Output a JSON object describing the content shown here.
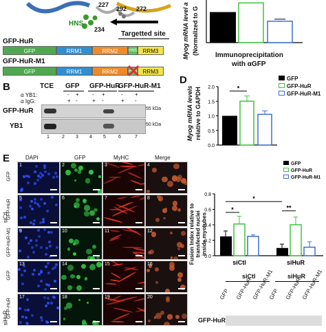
{
  "panelA": {
    "residues": [
      "227",
      "292",
      "272",
      "234"
    ],
    "hns_label": "HNS",
    "targeted_site": "Targetted site",
    "constructs": [
      {
        "name": "GFP-HuR",
        "domains": [
          "GFP",
          "RRM1",
          "RRM2",
          "HNS",
          "RRM3"
        ]
      },
      {
        "name": "GFP-HuR-M1",
        "domains": [
          "GFP",
          "RRM1",
          "RRM2",
          "HNS",
          "RRM3"
        ]
      }
    ]
  },
  "panelC": {
    "ylabel_1": "Myog mRNA level a",
    "ylabel_2": "(Normalized to G",
    "xlabel_1": "Immunoprecipitation",
    "xlabel_2": "with αGFP",
    "chart_data": {
      "type": "bar",
      "series": [
        {
          "name": "GFP",
          "values": [
            1.0
          ]
        },
        {
          "name": "GFP-HuR",
          "values": [
            1.3
          ]
        },
        {
          "name": "GFP-HuR-M1",
          "values": [
            0.7
          ]
        }
      ],
      "ylim": [
        0,
        1.35
      ]
    }
  },
  "panelB": {
    "letter": "B",
    "lanes": [
      "TCE",
      "GFP",
      "GFP-HuR",
      "GFP-HuR-M1"
    ],
    "row_yb1": "α YB1:",
    "row_igg": "α IgG:",
    "yb1_signs": [
      "-",
      "+",
      "-",
      "+",
      "-",
      "+"
    ],
    "igg_signs": [
      "+",
      "-",
      "+",
      "-",
      "+",
      "-"
    ],
    "bands": [
      "GFP-HuR",
      "YB1"
    ],
    "mw": [
      "55 kDa",
      "50 kDa"
    ],
    "lane_numbers": [
      "1",
      "2",
      "3",
      "4",
      "5",
      "6",
      "7"
    ]
  },
  "panelD": {
    "letter": "D",
    "legend": [
      "GFP",
      "GFP-HuR",
      "GFP-HuR-M1"
    ],
    "ylabel_1": "Myog mRNA levels",
    "ylabel_2": "relative to GAPDH",
    "significance": "*",
    "chart_data": {
      "type": "bar",
      "categories": [
        "GFP",
        "GFP-HuR",
        "GFP-HuR-M1"
      ],
      "values": [
        1.0,
        1.5,
        1.05
      ],
      "errors": [
        0,
        0.18,
        0.12
      ],
      "ylim": [
        0,
        2.0
      ],
      "yticks": [
        "0.0",
        "0.5",
        "1.0",
        "1.5",
        "2.0"
      ]
    }
  },
  "panelE": {
    "letter": "E",
    "columns": [
      "DAPI",
      "GFP",
      "MyHC",
      "Merge"
    ],
    "rows": [
      {
        "group": "siCtl",
        "label": "GFP",
        "nums": [
          "1",
          "2",
          "3",
          "4"
        ]
      },
      {
        "group": "siCtl",
        "label": "GFP-HuR",
        "nums": [
          "5",
          "6",
          "7",
          "8"
        ]
      },
      {
        "group": "siCtl",
        "label": "GFP-HuR-M1",
        "nums": [
          "9",
          "10",
          "11",
          "12"
        ]
      },
      {
        "group": "siHuR",
        "label": "GFP",
        "nums": [
          "13",
          "14",
          "15",
          "16"
        ]
      },
      {
        "group": "siHuR",
        "label": "GFP-HuR",
        "nums": [
          "17",
          "18",
          "19",
          "20"
        ]
      }
    ],
    "group_labels": [
      "siCtl",
      "siHuR"
    ],
    "legend": [
      "GFP",
      "GFP-HuR",
      "GFP-HuR-M1"
    ],
    "ylabel_1": "Fusion Index relative to",
    "ylabel_2": "transfected nuclei",
    "ylabel_3": "inside myotubes",
    "sig_marks": [
      "*",
      "*",
      "**"
    ],
    "chart_data": {
      "type": "bar",
      "categories": [
        "siCtl",
        "siHuR"
      ],
      "series": [
        {
          "name": "GFP",
          "values": [
            0.25,
            0.1
          ],
          "errors": [
            0.07,
            0.05
          ]
        },
        {
          "name": "GFP-HuR",
          "values": [
            0.41,
            0.4
          ],
          "errors": [
            0.1,
            0.1
          ]
        },
        {
          "name": "GFP-HuR-M1",
          "values": [
            0.25,
            0.11
          ],
          "errors": [
            0.02,
            0.07
          ]
        }
      ],
      "ylim": [
        0,
        0.8
      ],
      "yticks": [
        "0.0",
        "0.2",
        "0.4",
        "0.6",
        "0.8"
      ]
    }
  },
  "panelF": {
    "groups": [
      "siCtl",
      "siHuR"
    ],
    "lanes": [
      "GFP",
      "GFP-HuR",
      "GFP-HuR-M1",
      "GFP",
      "GFP-HuR",
      "GFP-HuR-M1"
    ],
    "band": "GFP-HuR"
  }
}
